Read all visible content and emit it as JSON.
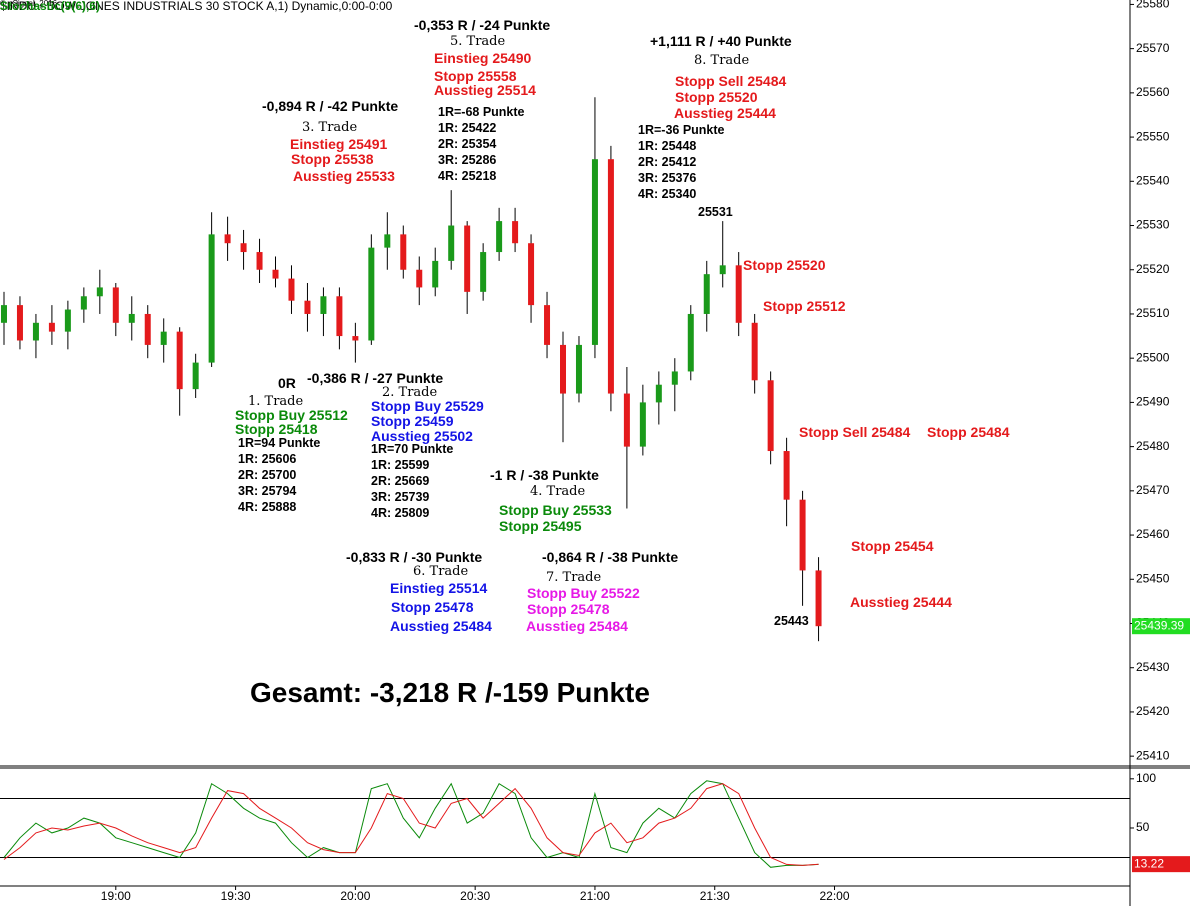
{
  "header": "$INDU - DOW-JONES INDUSTRIALS 30 STOCK A,1) Dynamic,0:00-0:00",
  "copyright": "© eSignal, 2016",
  "annotations": {
    "trades": [
      [
        "0R",
        "1. Trade",
        "Stopp Buy 25512",
        "Stopp 25418",
        "1R=94 Punkte",
        "1R: 25606",
        "2R: 25700",
        "3R: 25794",
        "4R: 25888"
      ],
      [
        "-0,386 R / -27 Punkte",
        "2. Trade",
        "Stopp Buy 25529",
        "Stopp 25459",
        "Ausstieg 25502",
        "1R=70 Punkte",
        "1R: 25599",
        "2R: 25669",
        "3R: 25739",
        "4R: 25809"
      ],
      [
        "-0,894 R / -42 Punkte",
        "3. Trade",
        "Einstieg 25491",
        "Stopp 25538",
        "Ausstieg 25533"
      ],
      [
        "-1 R / -38 Punkte",
        "4. Trade",
        "Stopp Buy 25533",
        "Stopp 25495"
      ],
      [
        "-0,353 R / -24 Punkte",
        "5. Trade",
        "Einstieg 25490",
        "Stopp 25558",
        "Ausstieg 25514",
        "1R=-68 Punkte",
        "1R: 25422",
        "2R: 25354",
        "3R: 25286",
        "4R: 25218"
      ],
      [
        "-0,833 R / -30 Punkte",
        "6. Trade",
        "Einstieg 25514",
        "Stopp 25478",
        "Ausstieg 25484"
      ],
      [
        "-0,864 R / -38 Punkte",
        "7. Trade",
        "Stopp Buy 25522",
        "Stopp 25478",
        "Ausstieg 25484"
      ],
      [
        "+1,111 R / +40 Punkte",
        "8. Trade",
        "Stopp Sell 25484",
        "Stopp 25520",
        "Ausstieg 25444",
        "1R=-36 Punkte",
        "1R: 25448",
        "2R: 25412",
        "3R: 25376",
        "4R: 25340"
      ]
    ],
    "side": [
      "Stopp 25520",
      "Stopp 25512",
      "Stopp Sell 25484",
      "Stopp 25484",
      "Stopp 25454",
      "Ausstieg 25444",
      "25531",
      "25443"
    ],
    "total": "Gesamt: -3,218 R /-159 Punkte"
  },
  "chart_data": [
    {
      "type": "candlestick",
      "x": [
        "18:32",
        "18:36",
        "18:40",
        "18:44",
        "18:48",
        "18:52",
        "18:56",
        "19:00",
        "19:04",
        "19:08",
        "19:12",
        "19:16",
        "19:20",
        "19:24",
        "19:28",
        "19:32",
        "19:36",
        "19:40",
        "19:44",
        "19:48",
        "19:52",
        "19:56",
        "20:00",
        "20:04",
        "20:08",
        "20:12",
        "20:16",
        "20:20",
        "20:24",
        "20:28",
        "20:32",
        "20:36",
        "20:40",
        "20:44",
        "20:48",
        "20:52",
        "20:56",
        "21:00",
        "21:04",
        "21:08",
        "21:12",
        "21:16",
        "21:20",
        "21:24",
        "21:28",
        "21:32",
        "21:36",
        "21:40",
        "21:44",
        "21:48",
        "21:52",
        "21:56"
      ],
      "open": [
        25508,
        25512,
        25504,
        25508,
        25506,
        25511,
        25514,
        25516,
        25508,
        25510,
        25503,
        25506,
        25493,
        25499,
        25528,
        25526,
        25524,
        25520,
        25518,
        25513,
        25510,
        25514,
        25505,
        25504,
        25525,
        25528,
        25520,
        25516,
        25522,
        25530,
        25515,
        25524,
        25531,
        25526,
        25512,
        25503,
        25492,
        25503,
        25545,
        25492,
        25480,
        25490,
        25494,
        25497,
        25510,
        25519,
        25521,
        25508,
        25495,
        25479,
        25468,
        25452
      ],
      "high": [
        25515,
        25514,
        25510,
        25512,
        25513,
        25516,
        25520,
        25517,
        25514,
        25512,
        25509,
        25507,
        25501,
        25533,
        25532,
        25529,
        25527,
        25523,
        25521,
        25517,
        25516,
        25516,
        25508,
        25528,
        25533,
        25530,
        25523,
        25525,
        25538,
        25531,
        25526,
        25534,
        25534,
        25528,
        25515,
        25506,
        25505,
        25559,
        25548,
        25498,
        25494,
        25497,
        25500,
        25512,
        25522,
        25531,
        25524,
        25510,
        25497,
        25482,
        25470,
        25455
      ],
      "low": [
        25503,
        25502,
        25500,
        25503,
        25502,
        25508,
        25510,
        25505,
        25504,
        25500,
        25499,
        25487,
        25491,
        25498,
        25522,
        25520,
        25517,
        25516,
        25510,
        25506,
        25505,
        25502,
        25499,
        25503,
        25520,
        25518,
        25512,
        25514,
        25520,
        25510,
        25513,
        25522,
        25524,
        25508,
        25500,
        25481,
        25490,
        25500,
        25488,
        25466,
        25478,
        25485,
        25488,
        25495,
        25506,
        25516,
        25505,
        25492,
        25476,
        25462,
        25444,
        25436
      ],
      "close": [
        25512,
        25504,
        25508,
        25506,
        25511,
        25514,
        25516,
        25508,
        25510,
        25503,
        25506,
        25493,
        25499,
        25528,
        25526,
        25524,
        25520,
        25518,
        25513,
        25510,
        25514,
        25505,
        25504,
        25525,
        25528,
        25520,
        25516,
        25522,
        25530,
        25515,
        25524,
        25531,
        25526,
        25512,
        25503,
        25492,
        25503,
        25545,
        25492,
        25480,
        25490,
        25494,
        25497,
        25510,
        25519,
        25521,
        25508,
        25495,
        25479,
        25468,
        25452,
        25439.39
      ],
      "up_color": "#1a9a1a",
      "down_color": "#e41a1c",
      "wick_color": "#000000",
      "last_value": 25439.39,
      "last_color": "#22dd22",
      "xlim": [
        "18:31",
        "23:14"
      ],
      "ylim": [
        25408,
        25581
      ],
      "yticks": [
        25410,
        25420,
        25430,
        25440,
        25450,
        25460,
        25470,
        25480,
        25490,
        25500,
        25510,
        25520,
        25530,
        25540,
        25550,
        25560,
        25570,
        25580
      ]
    },
    {
      "type": "line",
      "title": "Stochastic(9(6),6)",
      "x": [
        "18:32",
        "18:36",
        "18:40",
        "18:44",
        "18:48",
        "18:52",
        "18:56",
        "19:00",
        "19:04",
        "19:08",
        "19:12",
        "19:16",
        "19:20",
        "19:24",
        "19:28",
        "19:32",
        "19:36",
        "19:40",
        "19:44",
        "19:48",
        "19:52",
        "19:56",
        "20:00",
        "20:04",
        "20:08",
        "20:12",
        "20:16",
        "20:20",
        "20:24",
        "20:28",
        "20:32",
        "20:36",
        "20:40",
        "20:44",
        "20:48",
        "20:52",
        "20:56",
        "21:00",
        "21:04",
        "21:08",
        "21:12",
        "21:16",
        "21:20",
        "21:24",
        "21:28",
        "21:32",
        "21:36",
        "21:40",
        "21:44",
        "21:48",
        "21:52",
        "21:56"
      ],
      "series": [
        {
          "color": "#0a8a0a",
          "values": [
            20,
            40,
            55,
            45,
            50,
            60,
            55,
            40,
            35,
            30,
            25,
            20,
            45,
            95,
            85,
            70,
            60,
            55,
            35,
            20,
            30,
            25,
            25,
            90,
            95,
            60,
            40,
            70,
            95,
            55,
            65,
            95,
            85,
            40,
            20,
            25,
            20,
            85,
            30,
            25,
            55,
            70,
            60,
            85,
            98,
            95,
            60,
            25,
            10,
            12,
            12,
            13
          ]
        },
        {
          "color": "#e41a1c",
          "values": [
            18,
            30,
            45,
            50,
            48,
            52,
            55,
            50,
            42,
            35,
            30,
            25,
            30,
            60,
            88,
            85,
            70,
            60,
            50,
            35,
            28,
            25,
            25,
            50,
            85,
            80,
            55,
            50,
            75,
            80,
            60,
            75,
            90,
            70,
            40,
            25,
            22,
            45,
            55,
            35,
            40,
            55,
            60,
            70,
            90,
            95,
            85,
            50,
            20,
            13,
            12,
            13.22
          ]
        }
      ],
      "last_value": 13.22,
      "last_color": "#e41a1c",
      "levels": [
        20,
        80
      ],
      "xlim": [
        "18:31",
        "23:14"
      ],
      "ylim": [
        -9,
        111
      ],
      "yticks": [
        50,
        100
      ],
      "xticks": [
        "19:00",
        "19:30",
        "20:00",
        "20:30",
        "21:00",
        "21:30",
        "22:00"
      ]
    }
  ]
}
